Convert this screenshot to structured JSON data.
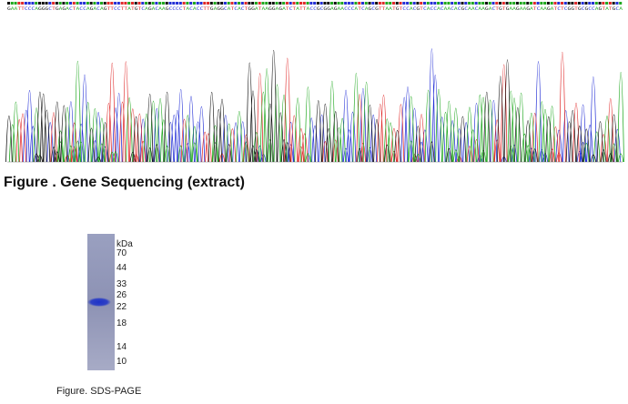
{
  "sequencing": {
    "sequence": "GAATTCCCAGGGCTGAGACTACCAGACAGTTCCTTATGTCAGACAAGCCCCTACACCTTGAGGCATCACTGGATAAGGAGATCTATTACCGCGGAGAACCCATCAGCGTTAATGTCCACGTCACCACAACACGCAACAAGACTGTGAAGAAGATCAAGATCTCGGTGCGCCAGTATGCA",
    "base_colors": {
      "A": "#1fa81f",
      "C": "#2430d6",
      "G": "#111111",
      "T": "#e02a2a"
    },
    "caption": "Figure . Gene Sequencing (extract)"
  },
  "sds_page": {
    "unit": "kDa",
    "markers": [
      "70",
      "44",
      "33",
      "26",
      "22",
      "18",
      "14",
      "10"
    ],
    "band_color": "#1e33c8",
    "lane_color": "#8d92b4",
    "caption": "Figure. SDS-PAGE"
  }
}
